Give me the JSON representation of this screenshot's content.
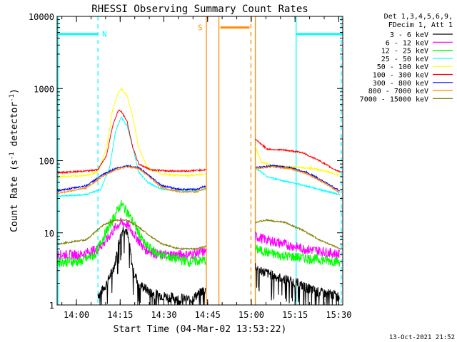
{
  "chart_data": {
    "type": "line",
    "title": "RHESSI Observing Summary Count Rates",
    "xlabel": "Start Time (04-Mar-02 13:53:22)",
    "ylabel_main": "Count Rate (s",
    "ylabel_sup1": "-1",
    "ylabel_mid": " detector",
    "ylabel_sup2": "-1",
    "ylabel_end": ")",
    "yscale": "log",
    "ylim": [
      1,
      10000
    ],
    "xlim_minutes": [
      0,
      98
    ],
    "xticks": [
      {
        "label": "14:00",
        "t": 6.63
      },
      {
        "label": "14:15",
        "t": 21.63
      },
      {
        "label": "14:30",
        "t": 36.63
      },
      {
        "label": "14:45",
        "t": 51.63
      },
      {
        "label": "15:00",
        "t": 66.63
      },
      {
        "label": "15:15",
        "t": 81.63
      },
      {
        "label": "15:30",
        "t": 96.63
      }
    ],
    "yticks": [
      {
        "label": "1",
        "v": 1
      },
      {
        "label": "10",
        "v": 10
      },
      {
        "label": "100",
        "v": 100
      },
      {
        "label": "1000",
        "v": 1000
      },
      {
        "label": "10000",
        "v": 10000
      }
    ],
    "legend_header": [
      "Det 1,3,4,5,6,9,",
      "FDecim 1, Att 1"
    ],
    "legend_position": "right",
    "series": [
      {
        "name": "3 - 6 keV",
        "color": "#000000",
        "points": [
          [
            14,
            1.4
          ],
          [
            15,
            1.5
          ],
          [
            17,
            2
          ],
          [
            19,
            3
          ],
          [
            20,
            4
          ],
          [
            21,
            7
          ],
          [
            22,
            10
          ],
          [
            23,
            12
          ],
          [
            24,
            10
          ],
          [
            25,
            6
          ],
          [
            26,
            3
          ],
          [
            28,
            2
          ],
          [
            32,
            1.5
          ],
          [
            38,
            1.3
          ],
          [
            46,
            1.2
          ],
          [
            50,
            1.6
          ],
          [
            51,
            1.7
          ]
        ],
        "points2": [
          [
            68,
            3.5
          ],
          [
            70,
            3
          ],
          [
            75,
            2.5
          ],
          [
            80,
            2.2
          ],
          [
            85,
            1.8
          ],
          [
            90,
            1.5
          ],
          [
            95,
            1.4
          ],
          [
            97,
            1.3
          ]
        ]
      },
      {
        "name": "6 - 12 keV",
        "color": "#ff00ff",
        "points": [
          [
            0,
            5
          ],
          [
            8,
            5
          ],
          [
            14,
            6
          ],
          [
            17,
            8
          ],
          [
            20,
            12
          ],
          [
            22,
            14
          ],
          [
            24,
            13
          ],
          [
            27,
            9
          ],
          [
            30,
            6
          ],
          [
            35,
            5
          ],
          [
            45,
            5
          ],
          [
            51,
            5.5
          ]
        ],
        "points2": [
          [
            68,
            9
          ],
          [
            72,
            8
          ],
          [
            78,
            7
          ],
          [
            85,
            6
          ],
          [
            92,
            5.5
          ],
          [
            97,
            5
          ]
        ]
      },
      {
        "name": "12 - 25 keV",
        "color": "#00ff00",
        "points": [
          [
            0,
            4
          ],
          [
            8,
            4
          ],
          [
            13,
            5
          ],
          [
            16,
            9
          ],
          [
            19,
            15
          ],
          [
            21,
            22
          ],
          [
            22,
            25
          ],
          [
            24,
            20
          ],
          [
            27,
            12
          ],
          [
            30,
            7
          ],
          [
            35,
            5
          ],
          [
            45,
            4
          ],
          [
            51,
            4.2
          ]
        ],
        "points2": [
          [
            68,
            6
          ],
          [
            75,
            5
          ],
          [
            85,
            4.5
          ],
          [
            97,
            4
          ]
        ]
      },
      {
        "name": "25 - 50 keV",
        "color": "#00ffff",
        "points": [
          [
            0,
            32
          ],
          [
            10,
            34
          ],
          [
            15,
            40
          ],
          [
            18,
            80
          ],
          [
            20,
            250
          ],
          [
            22,
            400
          ],
          [
            24,
            300
          ],
          [
            26,
            150
          ],
          [
            28,
            70
          ],
          [
            31,
            50
          ],
          [
            36,
            40
          ],
          [
            45,
            38
          ],
          [
            51,
            40
          ]
        ],
        "points2": [
          [
            68,
            80
          ],
          [
            72,
            60
          ],
          [
            78,
            52
          ],
          [
            85,
            45
          ],
          [
            92,
            38
          ],
          [
            97,
            34
          ]
        ]
      },
      {
        "name": "50 - 100 keV",
        "color": "#ffff00",
        "points": [
          [
            0,
            60
          ],
          [
            10,
            62
          ],
          [
            14,
            70
          ],
          [
            17,
            150
          ],
          [
            19,
            500
          ],
          [
            21,
            900
          ],
          [
            22,
            1000
          ],
          [
            24,
            800
          ],
          [
            26,
            400
          ],
          [
            28,
            150
          ],
          [
            31,
            80
          ],
          [
            36,
            65
          ],
          [
            45,
            62
          ],
          [
            51,
            65
          ]
        ],
        "points2": [
          [
            68,
            160
          ],
          [
            70,
            95
          ],
          [
            75,
            85
          ],
          [
            82,
            82
          ],
          [
            88,
            78
          ],
          [
            93,
            70
          ],
          [
            97,
            62
          ]
        ]
      },
      {
        "name": "100 - 300 keV",
        "color": "#ff0000",
        "points": [
          [
            0,
            68
          ],
          [
            10,
            72
          ],
          [
            14,
            75
          ],
          [
            17,
            120
          ],
          [
            19,
            300
          ],
          [
            21,
            500
          ],
          [
            22,
            480
          ],
          [
            24,
            350
          ],
          [
            26,
            150
          ],
          [
            28,
            90
          ],
          [
            32,
            75
          ],
          [
            38,
            72
          ],
          [
            45,
            72
          ],
          [
            51,
            75
          ]
        ],
        "points2": [
          [
            68,
            200
          ],
          [
            72,
            145
          ],
          [
            78,
            140
          ],
          [
            84,
            130
          ],
          [
            90,
            100
          ],
          [
            94,
            80
          ],
          [
            97,
            70
          ]
        ]
      },
      {
        "name": "300 - 800 keV",
        "color": "#0000ff",
        "points": [
          [
            0,
            38
          ],
          [
            10,
            45
          ],
          [
            16,
            65
          ],
          [
            20,
            78
          ],
          [
            24,
            85
          ],
          [
            28,
            80
          ],
          [
            32,
            60
          ],
          [
            36,
            45
          ],
          [
            42,
            40
          ],
          [
            48,
            40
          ],
          [
            51,
            45
          ]
        ],
        "points2": [
          [
            68,
            80
          ],
          [
            74,
            85
          ],
          [
            80,
            80
          ],
          [
            86,
            68
          ],
          [
            92,
            50
          ],
          [
            97,
            38
          ]
        ]
      },
      {
        "name": "800 - 7000 keV",
        "color": "#ff8c00",
        "points": [
          [
            0,
            35
          ],
          [
            10,
            42
          ],
          [
            16,
            62
          ],
          [
            20,
            75
          ],
          [
            24,
            82
          ],
          [
            28,
            78
          ],
          [
            32,
            58
          ],
          [
            36,
            42
          ],
          [
            42,
            37
          ],
          [
            48,
            37
          ],
          [
            51,
            42
          ]
        ],
        "points2": [
          [
            68,
            78
          ],
          [
            74,
            82
          ],
          [
            80,
            78
          ],
          [
            86,
            65
          ],
          [
            92,
            48
          ],
          [
            97,
            36
          ]
        ]
      },
      {
        "name": "7000 - 15000 keV",
        "color": "#808000",
        "points": [
          [
            0,
            7
          ],
          [
            10,
            8
          ],
          [
            16,
            13
          ],
          [
            20,
            15
          ],
          [
            24,
            15
          ],
          [
            28,
            12
          ],
          [
            32,
            9
          ],
          [
            36,
            7
          ],
          [
            42,
            6
          ],
          [
            48,
            6
          ],
          [
            51,
            6.5
          ]
        ],
        "points2": [
          [
            68,
            14
          ],
          [
            72,
            15
          ],
          [
            78,
            14
          ],
          [
            84,
            11
          ],
          [
            90,
            8
          ],
          [
            97,
            6
          ]
        ]
      }
    ],
    "annotations": {
      "night_label": "N",
      "saa_label": "S",
      "timestamp": "13-Oct-2021 21:52"
    },
    "bars": [
      {
        "kind": "night",
        "color": "#00ffff",
        "t0": 0,
        "t1": 14,
        "level": 5700
      },
      {
        "kind": "night",
        "color": "#00ffff",
        "t0": 82,
        "t1": 98,
        "level": 5700
      },
      {
        "kind": "saa",
        "color": "#ff8c00",
        "t0": 56,
        "t1": 66,
        "level": 7000
      }
    ],
    "vlines": [
      {
        "color": "#00ffff",
        "t": 0.3,
        "style": "solid"
      },
      {
        "color": "#00ffff",
        "t": 14,
        "style": "dashed"
      },
      {
        "color": "#00ffff",
        "t": 82,
        "style": "solid"
      },
      {
        "color": "#00ffff",
        "t": 97.5,
        "style": "dashed"
      },
      {
        "color": "#ff8c00",
        "t": 51.2,
        "style": "solid"
      },
      {
        "color": "#ff8c00",
        "t": 55.5,
        "style": "solid"
      },
      {
        "color": "#ff8c00",
        "t": 66.5,
        "style": "dashed"
      },
      {
        "color": "#ff8c00",
        "t": 68,
        "style": "solid"
      }
    ]
  }
}
